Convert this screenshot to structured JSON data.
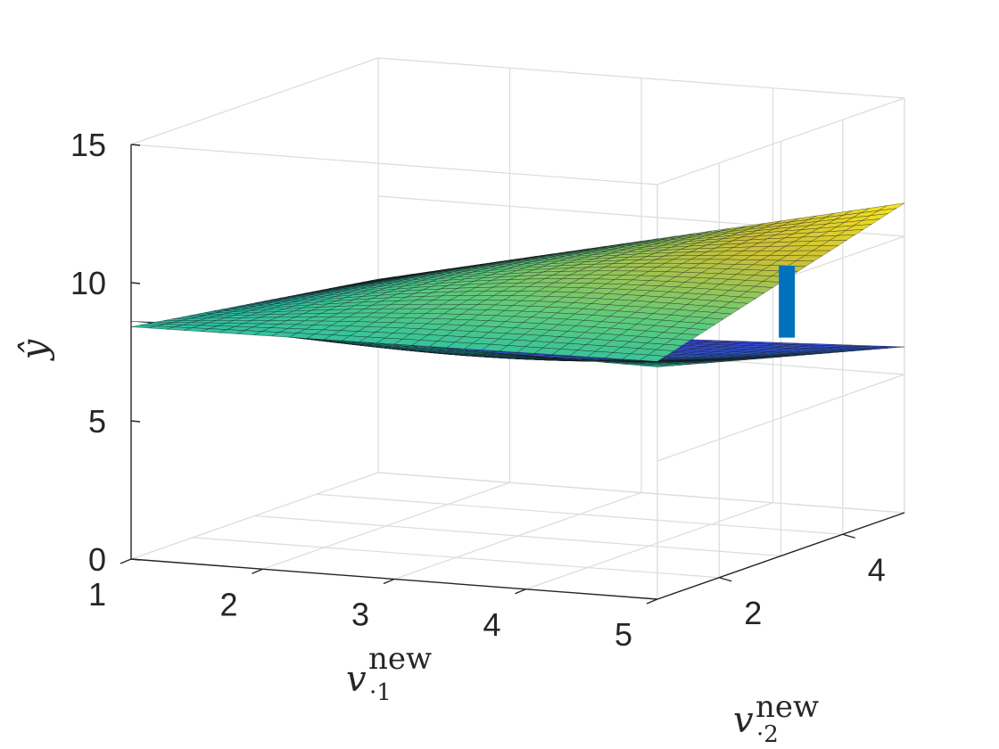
{
  "chart_data": {
    "type": "surface3d",
    "title": "",
    "x_axis": {
      "label_base": "v",
      "label_sub": "·1",
      "label_sup": "new",
      "ticks": [
        "1",
        "2",
        "3",
        "4",
        "5"
      ],
      "range": [
        1,
        5
      ]
    },
    "y_axis": {
      "label_base": "v",
      "label_sub": "·2",
      "label_sup": "new",
      "ticks": [
        "2",
        "4"
      ],
      "range": [
        1,
        5
      ]
    },
    "z_axis": {
      "label": "ŷ",
      "ticks": [
        "0",
        "5",
        "10",
        "15"
      ],
      "range": [
        0,
        15
      ]
    },
    "grid": true,
    "colormap": [
      "#3e26a8",
      "#2e5ff2",
      "#1f9fd9",
      "#24bfa9",
      "#5fcb7c",
      "#cbc036",
      "#f9e61f"
    ],
    "series": [
      {
        "kind": "surface",
        "corner_values": {
          "x1_y1": 8.4,
          "x5_y1": 8.6,
          "x1_y5": 7.0,
          "x5_y5": 11.2
        },
        "z_min": 7.0,
        "z_max": 11.2
      },
      {
        "kind": "surface",
        "corner_values": {
          "x1_y1": 8.6,
          "x5_y1": 8.4,
          "x1_y5": 5.2,
          "x5_y5": 6.0
        },
        "z_min": 5.2,
        "z_max": 8.6
      },
      {
        "kind": "vertical-bar",
        "x": 4.2,
        "y": 4.8,
        "z_from": 6.2,
        "z_to": 8.8,
        "color": "#0072bd"
      }
    ]
  }
}
